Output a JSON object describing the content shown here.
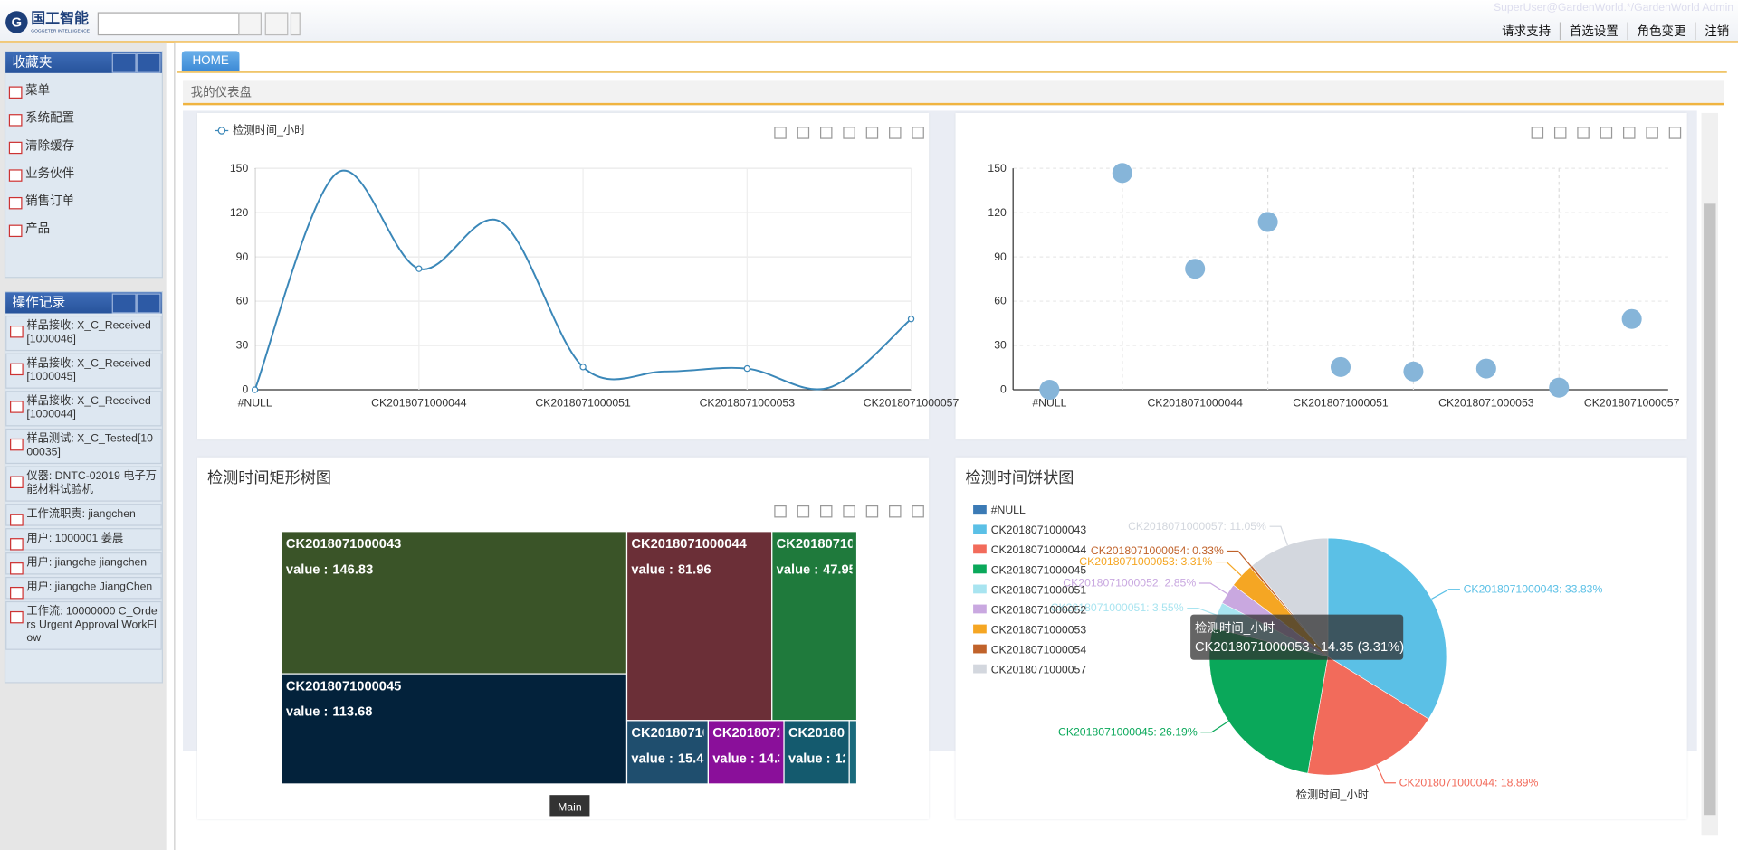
{
  "header": {
    "logo_title": "国工智能",
    "logo_subtitle": "GOGGETER INTELLIGENCE",
    "user": "SuperUser@GardenWorld.*/GardenWorld Admin",
    "links": [
      "请求支持",
      "首选设置",
      "角色变更",
      "注销"
    ]
  },
  "tab": "HOME",
  "dashboard_title": "我的仪表盘",
  "favorites": {
    "title": "收藏夹",
    "items": [
      "菜单",
      "系统配置",
      "清除缓存",
      "业务伙伴",
      "销售订单",
      "产品"
    ]
  },
  "history": {
    "title": "操作记录",
    "items": [
      "样品接收: X_C_Received[1000046]",
      "样品接收: X_C_Received[1000045]",
      "样品接收: X_C_Received[1000044]",
      "样品测试: X_C_Tested[1000035]",
      "仪器: DNTC-02019 电子万能材料试验机",
      "工作流职责: jiangchen",
      "用户: 1000001 姜晨",
      "用户: jiangche jiangchen",
      "用户: jiangche JiangChen",
      "工作流: 10000000 C_Orders Urgent Approval WorkFlow"
    ]
  },
  "charts": {
    "series_name": "检测时间_小时",
    "categories": [
      "#NULL",
      "CK2018071000043",
      "CK2018071000044",
      "CK2018071000045",
      "CK2018071000051",
      "CK2018071000052",
      "CK2018071000053",
      "CK2018071000054",
      "CK2018071000057"
    ],
    "values": [
      0,
      146.83,
      81.96,
      113.68,
      15.41,
      12.37,
      14.35,
      1.43,
      47.95
    ],
    "ylim": [
      0,
      150
    ],
    "yticks": [
      0,
      30,
      60,
      90,
      120,
      150
    ],
    "line": {
      "color": "#3a87b8"
    },
    "scatter": {
      "color": "#86b5d9"
    },
    "treemap": {
      "title": "检测时间矩形树图",
      "value_label": "value :",
      "colors": [
        "#3b7ab5",
        "#3a5428",
        "#6b2f37",
        "#03223b",
        "#1f4e6e",
        "#145a6e",
        "#8a0f9a",
        "#1a6a7c",
        "#1f7a3c"
      ],
      "button": "Main"
    },
    "pie": {
      "title": "检测时间饼状图",
      "colors": [
        "#3b7ab5",
        "#5bc0e6",
        "#f26b5b",
        "#0aa85a",
        "#a8e4f0",
        "#c9a8e0",
        "#f5a623",
        "#c0622a",
        "#d3d7de"
      ],
      "slice_labels": [
        null,
        "CK2018071000043: 33.83%",
        "CK2018071000044: 18.89%",
        "CK2018071000045: 26.19%",
        "CK2018071000051: 3.55%",
        "CK2018071000052: 2.85%",
        "CK2018071000053: 3.31%",
        "CK2018071000054: 0.33%",
        "CK2018071000057: 11.05%"
      ],
      "axis_label": "检测时间_小时",
      "tooltip": {
        "title": "检测时间_小时",
        "text": "CK2018071000053 : 14.35 (3.31%)"
      }
    }
  }
}
